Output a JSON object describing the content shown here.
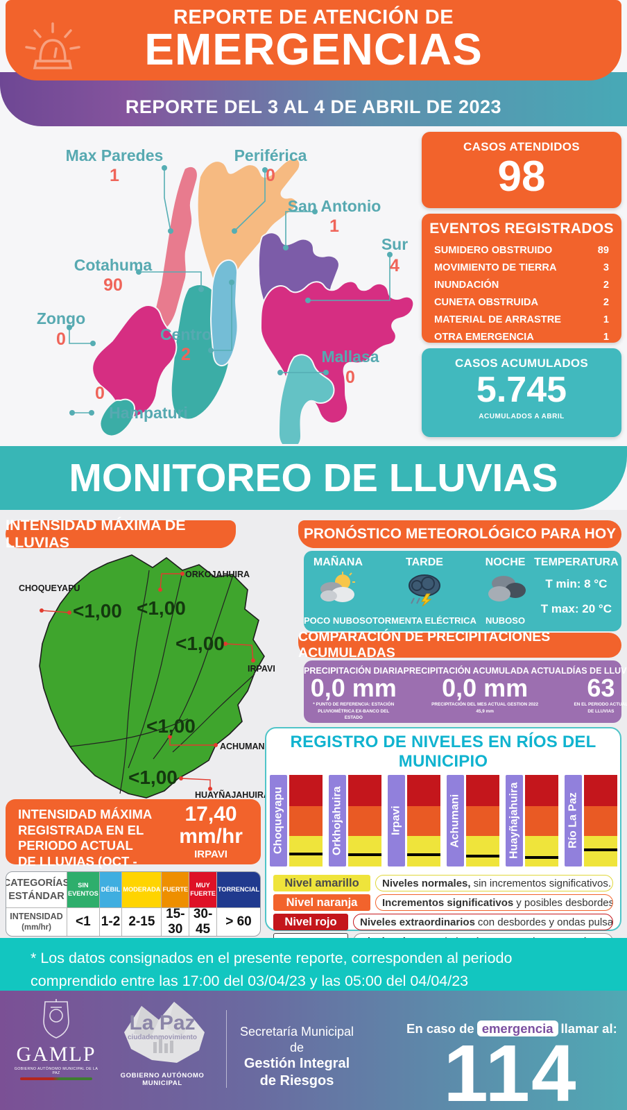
{
  "header": {
    "line1": "REPORTE DE ATENCIÓN DE",
    "line2": "EMERGENCIAS",
    "subtitle": "REPORTE DEL 3 AL 4 DE ABRIL DE 2023"
  },
  "map": {
    "districts": [
      {
        "name": "Max Paredes",
        "value": "1"
      },
      {
        "name": "Periférica",
        "value": "0"
      },
      {
        "name": "San Antonio",
        "value": "1"
      },
      {
        "name": "Sur",
        "value": "4"
      },
      {
        "name": "Cotahuma",
        "value": "90"
      },
      {
        "name": "Zongo",
        "value": "0"
      },
      {
        "name": "Centro",
        "value": "2"
      },
      {
        "name": "Mallasa",
        "value": "0"
      },
      {
        "name": "Hampaturi",
        "value": "0"
      }
    ]
  },
  "stats": {
    "atendidos": {
      "title": "CASOS ATENDIDOS",
      "value": "98"
    },
    "eventos": {
      "title": "EVENTOS REGISTRADOS",
      "items": [
        {
          "label": "SUMIDERO OBSTRUIDO",
          "value": "89"
        },
        {
          "label": "MOVIMIENTO DE TIERRA",
          "value": "3"
        },
        {
          "label": "INUNDACIÓN",
          "value": "2"
        },
        {
          "label": "CUNETA OBSTRUIDA",
          "value": "2"
        },
        {
          "label": "MATERIAL DE ARRASTRE",
          "value": "1"
        },
        {
          "label": "OTRA EMERGENCIA",
          "value": "1"
        }
      ]
    },
    "acumulados": {
      "title": "CASOS ACUMULADOS",
      "value": "5.745",
      "note": "ACUMULADOS  A ABRIL"
    }
  },
  "monitoreo": {
    "title": "MONITOREO DE LLUVIAS"
  },
  "lluvias": {
    "header": "INTENSIDAD MÁXIMA  DE LLUVIAS",
    "basins": [
      {
        "name": "CHOQUEYAPU",
        "value": "<1,00"
      },
      {
        "name": "ORKOJAHUIRA",
        "value": "<1,00"
      },
      {
        "name": "IRPAVI",
        "value": "<1,00"
      },
      {
        "name": "ACHUMANI",
        "value": "<1,00"
      },
      {
        "name": "HUAYÑAJAHUIRA",
        "value": "<1,00"
      }
    ],
    "registro": {
      "text": "INTENSIDAD MÁXIMA\nREGISTRADA EN EL\nPERIODO ACTUAL\nDE LLUVIAS (OCT - MAR):",
      "value": "17,40",
      "unit": "mm/hr",
      "station": "IRPAVI"
    }
  },
  "categorias": {
    "header": {
      "line1": "CATEGORÍAS",
      "line2": "ESTÁNDAR"
    },
    "intensidad": {
      "line1": "INTENSIDAD",
      "line2": "(mm/hr)"
    },
    "cols": [
      {
        "name": "SIN EVENTOS",
        "range": "<1",
        "color": "#2EAE6C"
      },
      {
        "name": "DÉBIL",
        "range": "1-2",
        "color": "#3FAEE0"
      },
      {
        "name": "MODERADA",
        "range": "2-15",
        "color": "#FFD400"
      },
      {
        "name": "FUERTE",
        "range": "15-30",
        "color": "#EE8F00"
      },
      {
        "name": "MUY FUERTE",
        "range": "30-45",
        "color": "#DE1126"
      },
      {
        "name": "TORRENCIAL",
        "range": "> 60",
        "color": "#203A8E"
      }
    ]
  },
  "pronostico": {
    "header": "PRONÓSTICO METEOROLÓGICO PARA HOY",
    "periods": [
      {
        "label": "MAÑANA",
        "condition": "POCO NUBOSO",
        "icon": "sun-clouds"
      },
      {
        "label": "TARDE",
        "condition": "TORMENTA  ELÉCTRICA",
        "icon": "storm"
      },
      {
        "label": "NOCHE",
        "condition": "NUBOSO",
        "icon": "clouds"
      }
    ],
    "temperatura": {
      "label": "TEMPERATURA",
      "tmin": "T min:  8 °C",
      "tmax": "T max: 20 °C"
    }
  },
  "precipitaciones": {
    "header": "COMPARACIÓN DE PRECIPITACIONES ACUMULADAS",
    "cols": [
      {
        "label": "PRECIPITACIÓN DIARIA",
        "value": "0,0 mm",
        "note": "* PUNTO DE REFERENCIA: ESTACIÓN\nPLUVIOMÉTRICA EX-BANCO DEL\nESTADO"
      },
      {
        "label": "PRECIPITACIÓN ACUMULADA ACTUAL",
        "value": "0,0 mm",
        "note": "PRECIPITACIÓN DEL MES ACTUAL  GESTION 2022\n45,9 mm"
      },
      {
        "label": "DÍAS DE LLUVIA",
        "value": "63",
        "note": "EN EL PERIODO ACTUAL\nDE LLUVIAS"
      }
    ]
  },
  "rios": {
    "title": "REGISTRO DE NIVELES EN RÍOS DEL MUNICIPIO",
    "rivers": [
      {
        "name": "Choqueyapu",
        "level_pct": 12
      },
      {
        "name": "Orkhojahuira",
        "level_pct": 11
      },
      {
        "name": "Irpavi",
        "level_pct": 11
      },
      {
        "name": "Achumani",
        "level_pct": 10
      },
      {
        "name": "Huayñajahuira",
        "level_pct": 8
      },
      {
        "name": "Río La Paz",
        "level_pct": 17
      }
    ],
    "zones": [
      {
        "name": "Nivel rojo",
        "color": "#C4161C"
      },
      {
        "name": "Nivel naranja",
        "color": "#E95A24"
      },
      {
        "name": "Nivel amarillo",
        "color": "#EFE43B"
      }
    ],
    "legend": [
      {
        "badge": "Nivel amarillo",
        "bold": "Niveles normales,",
        "rest": " sin incrementos significativos."
      },
      {
        "badge": "Nivel naranja",
        "bold": "Incrementos significativos",
        "rest": " y posibles desbordes."
      },
      {
        "badge": "Nivel rojo",
        "bold": "Niveles extraordinarios",
        "rest": " con desbordes y ondas pulsantes."
      },
      {
        "badge": "",
        "bold": "Niveles de agua",
        "rest": " de los ríos expresados en centímetros."
      }
    ]
  },
  "footnote": {
    "text": "* Los datos consignados en el presente reporte, corresponden al periodo comprendido entre las 17:00 del 03/04/23 y las 05:00 del 04/04/23"
  },
  "footer": {
    "gamlp_acronym": "GAMLP",
    "gamlp_caption": "GOBIERNO AUTÓNOMO MUNICIPAL DE LA PAZ",
    "lapaz_name": "La Paz",
    "lapaz_tagline": "ciudadenmovimiento",
    "lapaz_gov": "GOBIERNO AUTÓNOMO MUNICIPAL",
    "secretaria": {
      "line1": "Secretaría Municipal de",
      "line2": "Gestión Integral",
      "line3": "de Riesgos"
    },
    "emergency": {
      "pre": "En caso de",
      "highlight": "emergencia",
      "post": "llamar al:",
      "number": "114"
    }
  },
  "colors": {
    "orange_primary": "#F2632C",
    "teal_primary": "#38B6B6",
    "teal_card": "#41B9BE",
    "teal_note": "#12C6C0",
    "purple_card": "#9C6FB0",
    "purple_band": "#6E4794",
    "river_label_purple": "#9180DC",
    "bar_red": "#C4161C",
    "bar_orange": "#E95A24",
    "bar_yellow": "#EFE43B",
    "map_green": "#3FA52D",
    "district_label_teal": "#57A9B1",
    "district_value_red": "#EF6459"
  }
}
